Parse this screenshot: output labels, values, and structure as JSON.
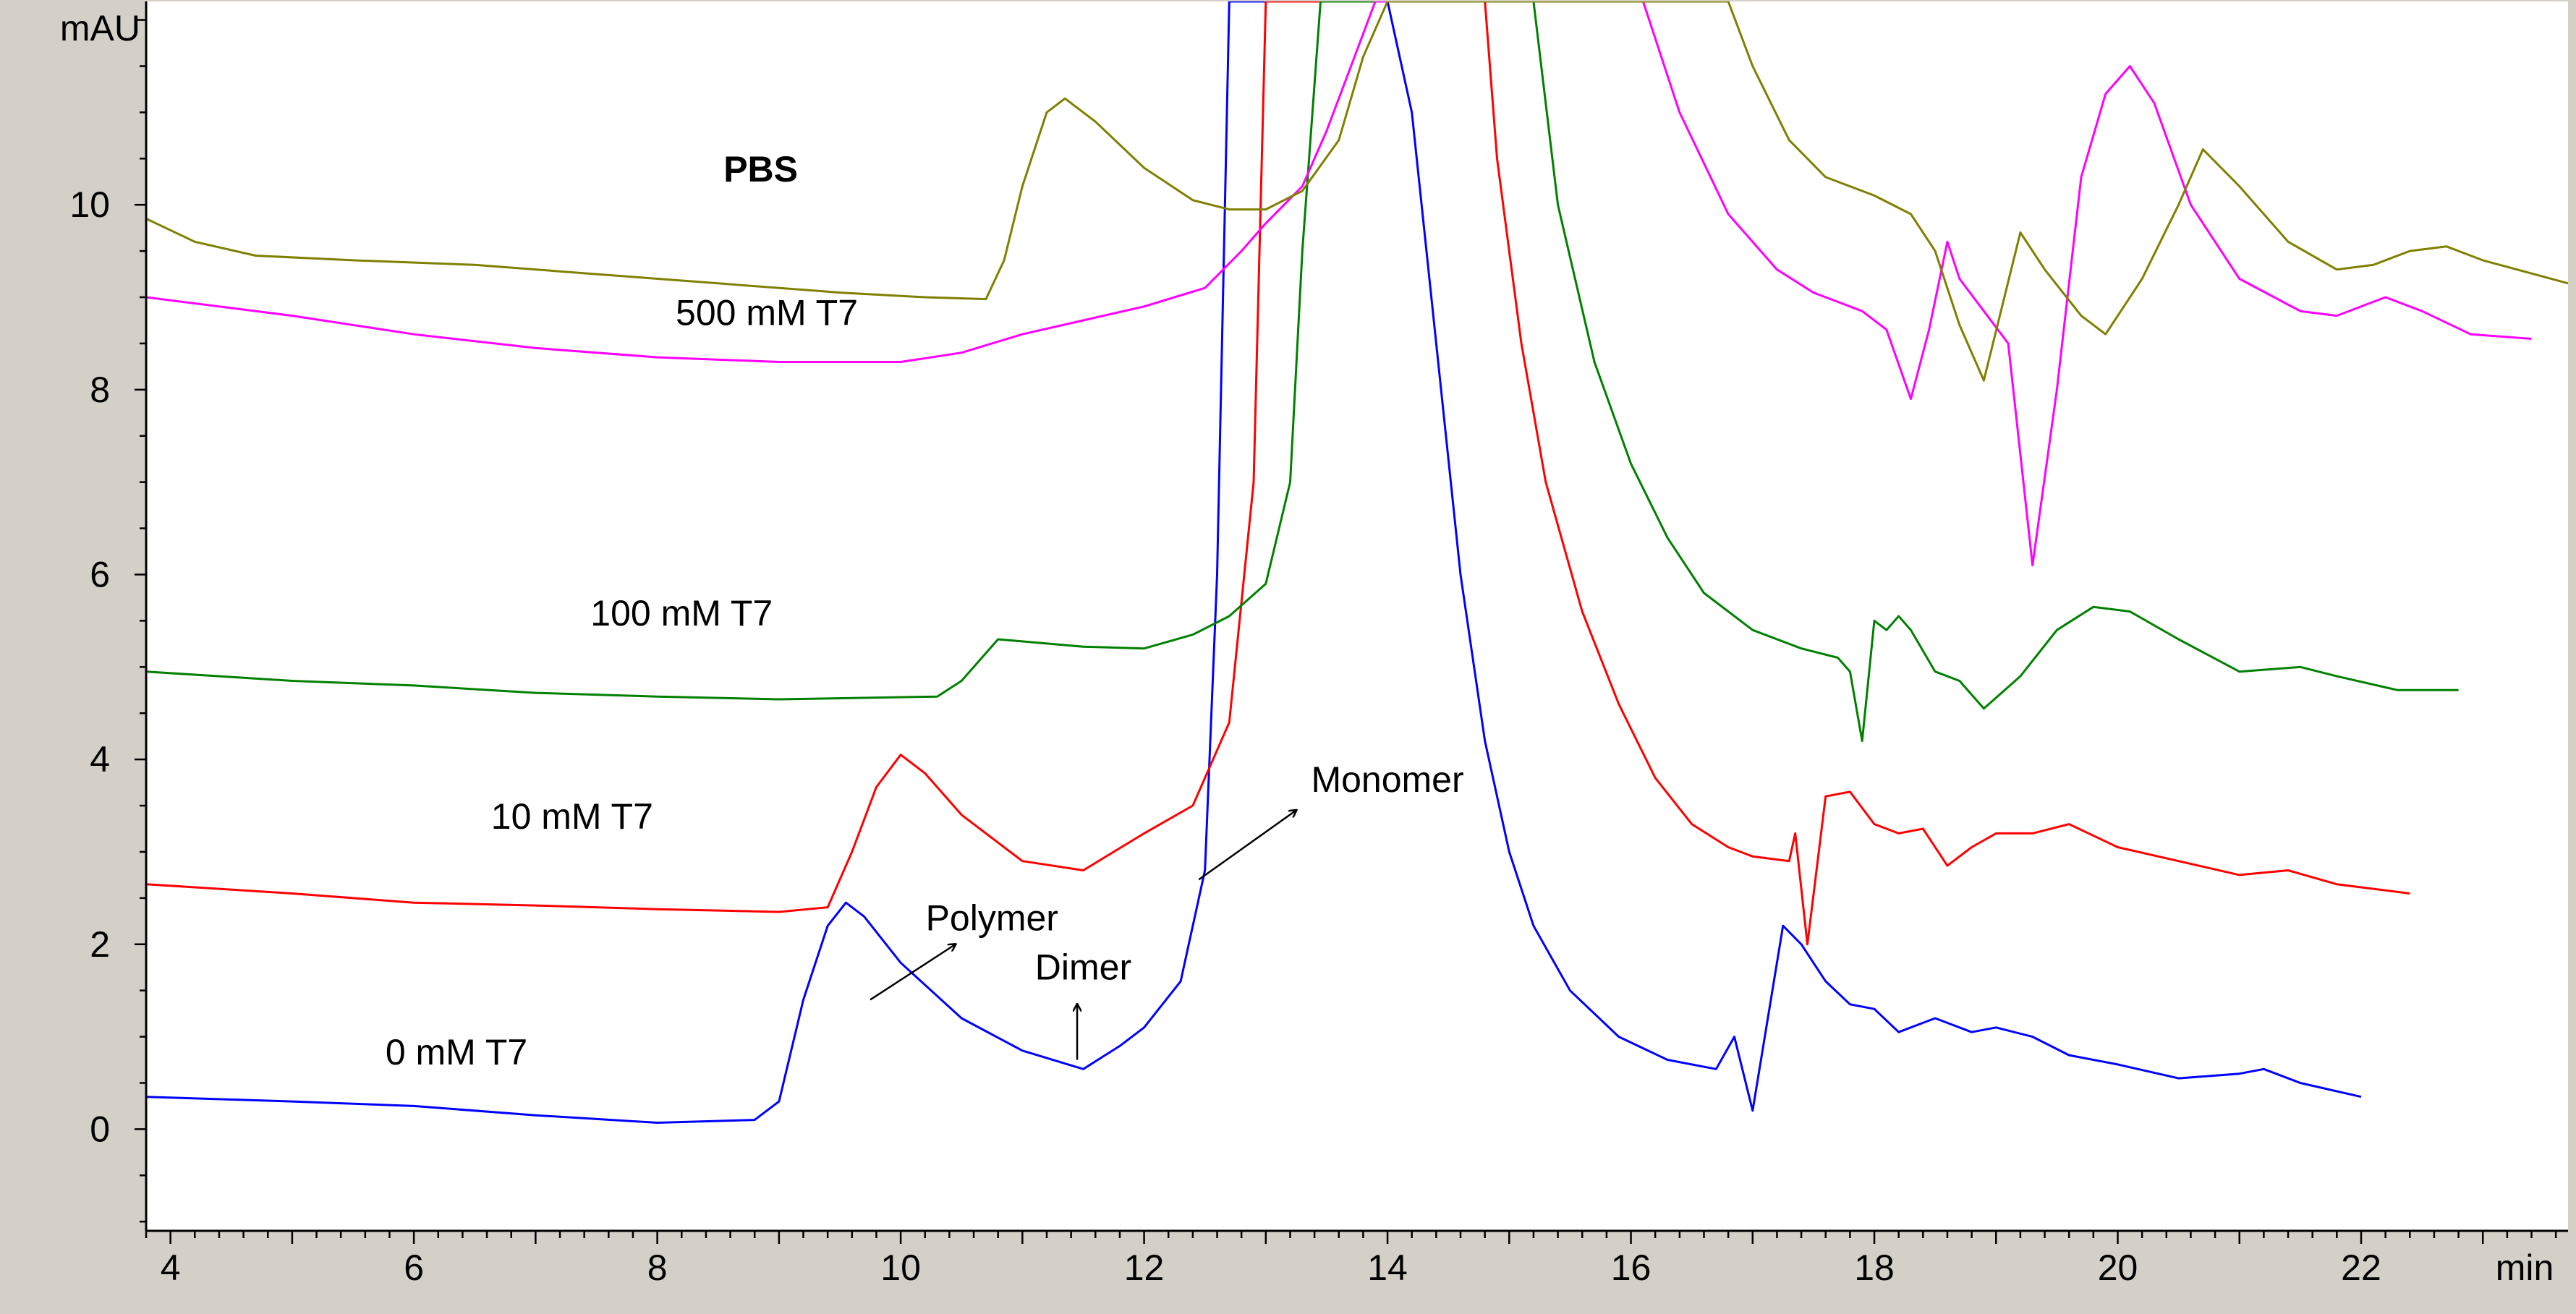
{
  "chart_data": {
    "type": "line",
    "title": "",
    "xlabel": "",
    "ylabel": "",
    "x_unit": "min",
    "y_unit": "mAU",
    "xlim": [
      3.8,
      23.7
    ],
    "ylim": [
      -1.1,
      12.2
    ],
    "x_ticks": [
      "4",
      "6",
      "8",
      "10",
      "12",
      "14",
      "16",
      "18",
      "20",
      "22"
    ],
    "y_ticks": [
      "0",
      "2",
      "4",
      "6",
      "8",
      "10"
    ],
    "grid": false,
    "legend": "none",
    "series": [
      {
        "name": "0 mM T7",
        "color": "#0000ff",
        "points": [
          [
            3.8,
            0.35
          ],
          [
            5,
            0.3
          ],
          [
            6,
            0.25
          ],
          [
            7,
            0.15
          ],
          [
            8,
            0.07
          ],
          [
            8.8,
            0.1
          ],
          [
            9.0,
            0.3
          ],
          [
            9.2,
            1.4
          ],
          [
            9.4,
            2.2
          ],
          [
            9.55,
            2.45
          ],
          [
            9.7,
            2.3
          ],
          [
            10,
            1.8
          ],
          [
            10.5,
            1.2
          ],
          [
            11,
            0.85
          ],
          [
            11.5,
            0.65
          ],
          [
            11.8,
            0.9
          ],
          [
            12.0,
            1.1
          ],
          [
            12.3,
            1.6
          ],
          [
            12.5,
            2.8
          ],
          [
            12.6,
            6.0
          ],
          [
            12.7,
            12.2
          ],
          [
            14.0,
            12.2
          ],
          [
            14.2,
            11.0
          ],
          [
            14.4,
            8.5
          ],
          [
            14.6,
            6.0
          ],
          [
            14.8,
            4.2
          ],
          [
            15.0,
            3.0
          ],
          [
            15.2,
            2.2
          ],
          [
            15.5,
            1.5
          ],
          [
            15.9,
            1.0
          ],
          [
            16.3,
            0.75
          ],
          [
            16.7,
            0.65
          ],
          [
            16.85,
            1.0
          ],
          [
            17.0,
            0.2
          ],
          [
            17.1,
            1.0
          ],
          [
            17.25,
            2.2
          ],
          [
            17.4,
            2.0
          ],
          [
            17.6,
            1.6
          ],
          [
            17.8,
            1.35
          ],
          [
            18.0,
            1.3
          ],
          [
            18.2,
            1.05
          ],
          [
            18.5,
            1.2
          ],
          [
            18.8,
            1.05
          ],
          [
            19.0,
            1.1
          ],
          [
            19.3,
            1.0
          ],
          [
            19.6,
            0.8
          ],
          [
            20.0,
            0.7
          ],
          [
            20.5,
            0.55
          ],
          [
            21.0,
            0.6
          ],
          [
            21.2,
            0.65
          ],
          [
            21.5,
            0.5
          ],
          [
            22.0,
            0.35
          ]
        ]
      },
      {
        "name": "10 mM T7",
        "color": "#ff0000",
        "points": [
          [
            3.8,
            2.65
          ],
          [
            5,
            2.55
          ],
          [
            6,
            2.45
          ],
          [
            7,
            2.42
          ],
          [
            8,
            2.38
          ],
          [
            9,
            2.35
          ],
          [
            9.4,
            2.4
          ],
          [
            9.6,
            3.0
          ],
          [
            9.8,
            3.7
          ],
          [
            10.0,
            4.05
          ],
          [
            10.2,
            3.85
          ],
          [
            10.5,
            3.4
          ],
          [
            11.0,
            2.9
          ],
          [
            11.5,
            2.8
          ],
          [
            12.0,
            3.2
          ],
          [
            12.4,
            3.5
          ],
          [
            12.7,
            4.4
          ],
          [
            12.9,
            7.0
          ],
          [
            13.0,
            12.2
          ],
          [
            14.8,
            12.2
          ],
          [
            14.9,
            10.5
          ],
          [
            15.1,
            8.5
          ],
          [
            15.3,
            7.0
          ],
          [
            15.6,
            5.6
          ],
          [
            15.9,
            4.6
          ],
          [
            16.2,
            3.8
          ],
          [
            16.5,
            3.3
          ],
          [
            16.8,
            3.05
          ],
          [
            17.0,
            2.95
          ],
          [
            17.3,
            2.9
          ],
          [
            17.35,
            3.2
          ],
          [
            17.45,
            2.0
          ],
          [
            17.6,
            3.6
          ],
          [
            17.8,
            3.65
          ],
          [
            18.0,
            3.3
          ],
          [
            18.2,
            3.2
          ],
          [
            18.4,
            3.25
          ],
          [
            18.6,
            2.85
          ],
          [
            18.8,
            3.05
          ],
          [
            19.0,
            3.2
          ],
          [
            19.3,
            3.2
          ],
          [
            19.6,
            3.3
          ],
          [
            20.0,
            3.05
          ],
          [
            20.5,
            2.9
          ],
          [
            21.0,
            2.75
          ],
          [
            21.4,
            2.8
          ],
          [
            21.8,
            2.65
          ],
          [
            22.4,
            2.55
          ]
        ]
      },
      {
        "name": "100 mM T7",
        "color": "#008000",
        "points": [
          [
            3.8,
            4.95
          ],
          [
            5,
            4.85
          ],
          [
            6,
            4.8
          ],
          [
            7,
            4.72
          ],
          [
            8,
            4.68
          ],
          [
            9,
            4.65
          ],
          [
            10.3,
            4.68
          ],
          [
            10.5,
            4.85
          ],
          [
            10.8,
            5.3
          ],
          [
            11.5,
            5.22
          ],
          [
            12.0,
            5.2
          ],
          [
            12.4,
            5.35
          ],
          [
            12.7,
            5.55
          ],
          [
            13.0,
            5.9
          ],
          [
            13.2,
            7.0
          ],
          [
            13.3,
            9.5
          ],
          [
            13.45,
            12.2
          ],
          [
            15.2,
            12.2
          ],
          [
            15.4,
            10.0
          ],
          [
            15.7,
            8.3
          ],
          [
            16.0,
            7.2
          ],
          [
            16.3,
            6.4
          ],
          [
            16.6,
            5.8
          ],
          [
            17.0,
            5.4
          ],
          [
            17.4,
            5.2
          ],
          [
            17.7,
            5.1
          ],
          [
            17.8,
            4.95
          ],
          [
            17.9,
            4.2
          ],
          [
            18.0,
            5.5
          ],
          [
            18.1,
            5.4
          ],
          [
            18.2,
            5.55
          ],
          [
            18.3,
            5.4
          ],
          [
            18.5,
            4.95
          ],
          [
            18.7,
            4.85
          ],
          [
            18.9,
            4.55
          ],
          [
            19.2,
            4.9
          ],
          [
            19.5,
            5.4
          ],
          [
            19.8,
            5.65
          ],
          [
            20.1,
            5.6
          ],
          [
            20.5,
            5.3
          ],
          [
            21.0,
            4.95
          ],
          [
            21.5,
            5.0
          ],
          [
            21.8,
            4.9
          ],
          [
            22.3,
            4.75
          ],
          [
            22.8,
            4.75
          ]
        ]
      },
      {
        "name": "500 mM T7",
        "color": "#ff00ff",
        "points": [
          [
            3.8,
            9.0
          ],
          [
            5,
            8.8
          ],
          [
            6,
            8.6
          ],
          [
            7,
            8.45
          ],
          [
            8,
            8.35
          ],
          [
            9,
            8.3
          ],
          [
            10.0,
            8.3
          ],
          [
            10.5,
            8.4
          ],
          [
            11.0,
            8.6
          ],
          [
            11.5,
            8.75
          ],
          [
            12.0,
            8.9
          ],
          [
            12.5,
            9.1
          ],
          [
            12.8,
            9.5
          ],
          [
            13.0,
            9.8
          ],
          [
            13.3,
            10.2
          ],
          [
            13.5,
            10.8
          ],
          [
            13.7,
            11.5
          ],
          [
            13.9,
            12.2
          ],
          [
            16.1,
            12.2
          ],
          [
            16.4,
            11.0
          ],
          [
            16.8,
            9.9
          ],
          [
            17.2,
            9.3
          ],
          [
            17.5,
            9.05
          ],
          [
            17.9,
            8.85
          ],
          [
            18.1,
            8.65
          ],
          [
            18.3,
            7.9
          ],
          [
            18.45,
            8.65
          ],
          [
            18.6,
            9.6
          ],
          [
            18.7,
            9.2
          ],
          [
            18.9,
            8.85
          ],
          [
            19.1,
            8.5
          ],
          [
            19.3,
            6.1
          ],
          [
            19.5,
            8.0
          ],
          [
            19.7,
            10.3
          ],
          [
            19.9,
            11.2
          ],
          [
            20.1,
            11.5
          ],
          [
            20.3,
            11.1
          ],
          [
            20.6,
            10.0
          ],
          [
            21.0,
            9.2
          ],
          [
            21.5,
            8.85
          ],
          [
            21.8,
            8.8
          ],
          [
            22.2,
            9.0
          ],
          [
            22.5,
            8.85
          ],
          [
            22.9,
            8.6
          ],
          [
            23.4,
            8.55
          ]
        ]
      },
      {
        "name": "PBS",
        "color": "#808000",
        "points": [
          [
            3.8,
            9.85
          ],
          [
            4.2,
            9.6
          ],
          [
            4.7,
            9.45
          ],
          [
            5.5,
            9.4
          ],
          [
            6.5,
            9.35
          ],
          [
            7.5,
            9.25
          ],
          [
            8.5,
            9.15
          ],
          [
            9.5,
            9.05
          ],
          [
            10.2,
            9.0
          ],
          [
            10.7,
            8.98
          ],
          [
            10.85,
            9.4
          ],
          [
            11.0,
            10.2
          ],
          [
            11.2,
            11.0
          ],
          [
            11.35,
            11.15
          ],
          [
            11.6,
            10.9
          ],
          [
            12.0,
            10.4
          ],
          [
            12.4,
            10.05
          ],
          [
            12.7,
            9.95
          ],
          [
            13.0,
            9.95
          ],
          [
            13.3,
            10.15
          ],
          [
            13.6,
            10.7
          ],
          [
            13.8,
            11.6
          ],
          [
            14.0,
            12.2
          ],
          [
            16.8,
            12.2
          ],
          [
            17.0,
            11.5
          ],
          [
            17.3,
            10.7
          ],
          [
            17.6,
            10.3
          ],
          [
            18.0,
            10.1
          ],
          [
            18.3,
            9.9
          ],
          [
            18.5,
            9.5
          ],
          [
            18.7,
            8.7
          ],
          [
            18.9,
            8.1
          ],
          [
            19.2,
            9.7
          ],
          [
            19.4,
            9.3
          ],
          [
            19.7,
            8.8
          ],
          [
            19.9,
            8.6
          ],
          [
            20.2,
            9.2
          ],
          [
            20.5,
            10.0
          ],
          [
            20.7,
            10.6
          ],
          [
            21.0,
            10.2
          ],
          [
            21.4,
            9.6
          ],
          [
            21.8,
            9.3
          ],
          [
            22.1,
            9.35
          ],
          [
            22.4,
            9.5
          ],
          [
            22.7,
            9.55
          ],
          [
            23.0,
            9.4
          ],
          [
            23.7,
            9.15
          ]
        ]
      }
    ],
    "annotations": [
      {
        "text": "PBS",
        "x": 8.85,
        "y": 10.25,
        "bold": true
      },
      {
        "text": "500 mM T7",
        "x": 8.9,
        "y": 8.7
      },
      {
        "text": "100 mM T7",
        "x": 8.2,
        "y": 5.45
      },
      {
        "text": "10 mM T7",
        "x": 7.3,
        "y": 3.25
      },
      {
        "text": "0 mM T7",
        "x": 6.35,
        "y": 0.7
      },
      {
        "text": "Polymer",
        "x": 10.75,
        "y": 2.15
      },
      {
        "text": "Dimer",
        "x": 11.5,
        "y": 1.62
      },
      {
        "text": "Monomer",
        "x": 14.0,
        "y": 3.65
      }
    ],
    "arrows": [
      {
        "from": [
          9.75,
          1.4
        ],
        "to": [
          10.45,
          2.0
        ]
      },
      {
        "from": [
          11.45,
          0.75
        ],
        "to": [
          11.45,
          1.35
        ]
      },
      {
        "from": [
          12.45,
          2.7
        ],
        "to": [
          13.25,
          3.45
        ]
      }
    ]
  }
}
